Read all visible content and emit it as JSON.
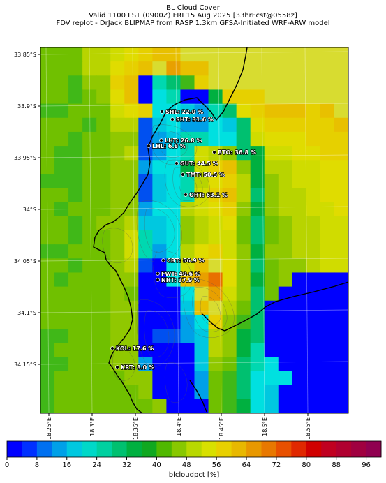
{
  "title": {
    "line1": "BL Cloud Cover",
    "line2": "Valid 1100 LST (0900Z) FRI 15 Aug 2025 [33hrFcst@0558z]",
    "line3": "FDV replot - DrJack BLIPMAP from RASP 1.3km GFSA-Initiated WRF-ARW model"
  },
  "lat_ticks": [
    "33.85°S",
    "33.9°S",
    "33.95°S",
    "34°S",
    "34.05°S",
    "34.1°S",
    "34.15°S"
  ],
  "lon_ticks": [
    "18.25°E",
    "18.3°E",
    "18.35°E",
    "18.4°E",
    "18.45°E",
    "18.5°E",
    "18.55°E"
  ],
  "stations": [
    {
      "code": "SHL",
      "value": 22.0,
      "label": "SHL: 22.0 %"
    },
    {
      "code": "SHT",
      "value": 31.6,
      "label": "SHT: 31.6 %"
    },
    {
      "code": "LHT",
      "value": 26.8,
      "label": "LHT: 26.8 %"
    },
    {
      "code": "LHL",
      "value": 6.8,
      "label": "LHL: 6.8 %"
    },
    {
      "code": "BTO",
      "value": 36.8,
      "label": "BTO: 36.8 %"
    },
    {
      "code": "GUT",
      "value": 44.5,
      "label": "GUT: 44.5 %"
    },
    {
      "code": "TMT",
      "value": 50.5,
      "label": "TMT: 50.5 %"
    },
    {
      "code": "OHT",
      "value": 63.1,
      "label": "OHT: 63.1 %"
    },
    {
      "code": "CBT",
      "value": 56.9,
      "label": "CBT: 56.9 %"
    },
    {
      "code": "FWT",
      "value": 40.6,
      "label": "FWT: 40.6 %"
    },
    {
      "code": "NHT",
      "value": 37.9,
      "label": "NHT: 37.9 %"
    },
    {
      "code": "KOL",
      "value": 17.6,
      "label": "KOL: 17.6 %"
    },
    {
      "code": "KRT",
      "value": 8.0,
      "label": "KRT: 8.0 %"
    }
  ],
  "colorbar": {
    "label": "blcloudpct [%]",
    "min": 0,
    "max": 100,
    "step": 4,
    "tick_labels": [
      "0",
      "8",
      "16",
      "24",
      "32",
      "40",
      "48",
      "56",
      "64",
      "72",
      "80",
      "88",
      "96"
    ],
    "colors": [
      "#0000ff",
      "#0030ff",
      "#0070f0",
      "#00a0e8",
      "#00c8e0",
      "#00d8c8",
      "#00d0a0",
      "#00c070",
      "#00b040",
      "#10a820",
      "#50b800",
      "#88c800",
      "#b8d800",
      "#d8e000",
      "#e8d000",
      "#e8b800",
      "#e89800",
      "#e87800",
      "#e85000",
      "#e02800",
      "#d00000",
      "#c00020",
      "#b00030",
      "#a00040",
      "#900050"
    ]
  },
  "grid": {
    "cols": 22,
    "rows": 26,
    "values": [
      "JJJLLMNOPPQQQQQQQQQQQQ",
      "JJJLLNOPQRPPQQQQQQQQQQ",
      "JJIKKOPAFGIOQQQQQQQQQQ",
      "JJIJKNPAEFAAHOOOQQQQQQ",
      "IIJJJMNOEEDCFGNOPPPOPQ",
      "JJJIJLLBDECCEDGNOOOOOP",
      "JJIJJKKBCDFFEEGMNNNOOO",
      "JIIJJKLBCEFMLKGHMMNNOO",
      "JIIJJKKCEEHMOPKHLLMMNN",
      "IIIJJKKBDEFLNOLHKLMMNN",
      "JJIJJKKBDEFMOPLGKLLMNN",
      "JIJJJKKCEELMNOKHKLLMMN",
      "JJIJKKLDDEKLMNJGJKLLMM",
      "JJIJJKMFDEKLMMJGJKLLMM",
      "IIJJJKMFCELNOMKHKKLLMM",
      "JJIJJKLBAEMPQNKGJKKLMM",
      "JIJJJKKAAEPRSNKHJKAAAA",
      "JJJJJKJAAAEQRMKGJAAAAA",
      "JJJJJKKAAADPQLJGAAAAAA",
      "JJJJJKKAAACEOKIGAAAAAA",
      "IIJJJKKABBCDLKHGAAAAAA",
      "IJJJJKKAAAADLKHFAAAAAA",
      "IIJJJKKCAAADKJGFEAAAAA",
      "IJJJJJKKAAACJIGEEEAAAA",
      "IJJJJJJKAAACJIGEDAAAAA",
      "IJJJJJJJKAAAJIHEDAAAAA"
    ]
  }
}
